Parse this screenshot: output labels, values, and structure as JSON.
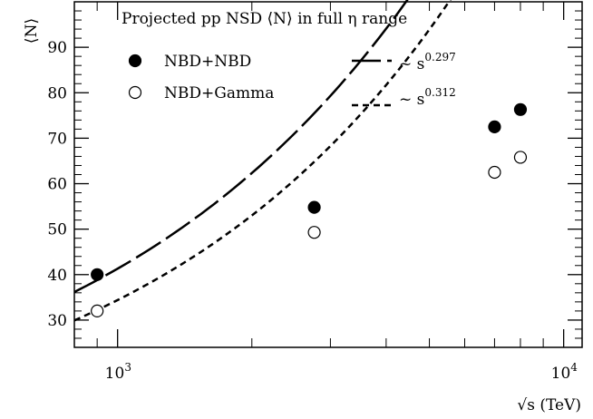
{
  "chart_data": {
    "type": "scatter",
    "title": "Projected pp NSD ⟨N⟩ in full η range",
    "xlabel": "√s (TeV)",
    "ylabel": "⟨N⟩",
    "xscale": "log",
    "xlim": [
      800,
      11000
    ],
    "ylim": [
      24,
      100
    ],
    "x_ticklabels": [
      {
        "value": 1000,
        "base": "10",
        "exp": "3"
      },
      {
        "value": 10000,
        "base": "10",
        "exp": "4"
      }
    ],
    "y_ticks": [
      30,
      40,
      50,
      60,
      70,
      80,
      90
    ],
    "grid": false,
    "legend": {
      "placement": "top",
      "entries": [
        {
          "label": "NBD+NBD",
          "marker": "filled-circle"
        },
        {
          "label": "NBD+Gamma",
          "marker": "open-circle"
        },
        {
          "label_prefix": "~ s",
          "exp": "0.297",
          "line": "long-dash"
        },
        {
          "label_prefix": "~ s",
          "exp": "0.312",
          "line": "short-dash"
        }
      ]
    },
    "series": [
      {
        "name": "NBD+NBD",
        "marker": "filled",
        "x": [
          900,
          2760,
          7000,
          8000
        ],
        "y": [
          40.0,
          54.8,
          72.5,
          76.3
        ]
      },
      {
        "name": "NBD+Gamma",
        "marker": "open",
        "x": [
          900,
          2760,
          7000,
          8000
        ],
        "y": [
          32.0,
          49.3,
          62.5,
          65.8
        ]
      }
    ],
    "fits": [
      {
        "exponent_label": "0.297",
        "style": "long-dash",
        "x_range": [
          800,
          11000
        ],
        "anchor_x": 1000,
        "anchor_y": 41.3
      },
      {
        "exponent_label": "0.312",
        "style": "short-dash",
        "x_range": [
          800,
          11000
        ],
        "anchor_x": 1000,
        "anchor_y": 34.4
      }
    ]
  }
}
